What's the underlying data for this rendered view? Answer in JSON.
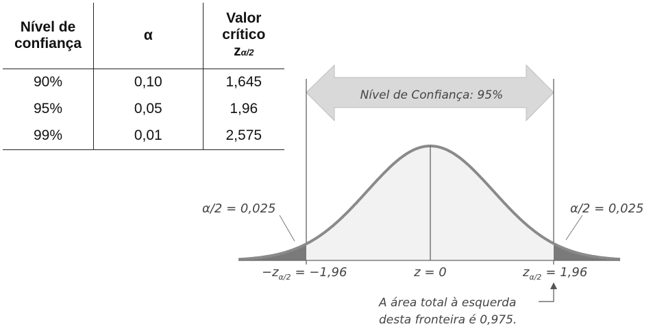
{
  "table": {
    "headers": {
      "level": [
        "Nível de",
        "confiança"
      ],
      "alpha": "α",
      "critical": [
        "Valor",
        "crítico"
      ],
      "z_symbol": "z",
      "z_sub": "α/2"
    },
    "rows": [
      {
        "level": "90%",
        "alpha": "0,10",
        "z": "1,645"
      },
      {
        "level": "95%",
        "alpha": "0,05",
        "z": "1,96"
      },
      {
        "level": "99%",
        "alpha": "0,01",
        "z": "2,575"
      }
    ]
  },
  "diagram": {
    "confidence_label": "Nível de Confiança: 95%",
    "left_tail_label": "α/2 = 0,025",
    "right_tail_label": "α/2 = 0,025",
    "left_z_label": "−z",
    "left_z_sub": "α/2",
    "left_z_value": "= −1,96",
    "center_label": "z = 0",
    "right_z_label": "z",
    "right_z_sub": "α/2",
    "right_z_value": "= 1,96",
    "note_line1": "A área total à esquerda",
    "note_line2": "desta fronteira é 0,975.",
    "colors": {
      "curve": "#8a8a8a",
      "center_fill": "#f2f2f2",
      "tail_fill": "#7a7a7a",
      "arrow_fill": "#d9d9d9"
    }
  }
}
